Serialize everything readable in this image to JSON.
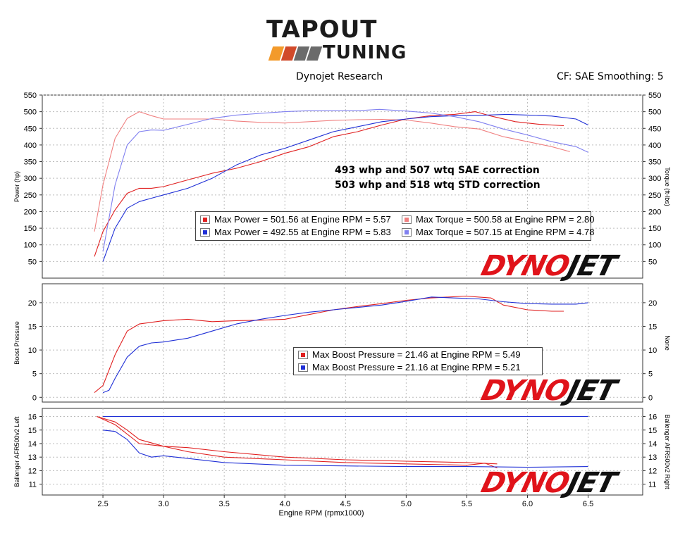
{
  "logo": {
    "top": "TAPOUT",
    "bottom": "TUNING"
  },
  "header": {
    "left": "Dynojet Research",
    "right": "CF: SAE Smoothing: 5"
  },
  "watermark": {
    "part1": "DYNO",
    "part2": "JET"
  },
  "notes": [
    "493 whp and 507 wtq SAE correction",
    "503 whp and 518 wtq STD correction"
  ],
  "legends": {
    "power": [
      "Max Power = 501.56 at Engine RPM = 5.57",
      "Max Torque = 500.58 at Engine RPM = 2.80",
      "Max Power = 492.55 at Engine RPM = 5.83",
      "Max Torque = 507.15 at Engine RPM = 4.78"
    ],
    "boost": [
      "Max Boost Pressure = 21.46 at Engine RPM = 5.49",
      "Max Boost Pressure = 21.16 at Engine RPM = 5.21"
    ]
  },
  "colors": {
    "run1": "#e02020",
    "run1_light": "#f08080",
    "run2": "#1f2fd6",
    "run2_light": "#8080f0",
    "logo_orange": "#f39a2b",
    "logo_red": "#d14a2a",
    "logo_gray": "#6b6b6b"
  },
  "chart_data": [
    {
      "type": "line",
      "panel": "power",
      "ylabel": "Power (hp)",
      "ylabel_right": "Torque (ft-lbs)",
      "xlim": [
        2.0,
        6.95
      ],
      "ylim": [
        0,
        550
      ],
      "yticks": [
        50,
        100,
        150,
        200,
        250,
        300,
        350,
        400,
        450,
        500,
        550
      ],
      "grid": true,
      "series": [
        {
          "role": "power",
          "run": 1,
          "x": [
            2.43,
            2.5,
            2.6,
            2.7,
            2.8,
            2.9,
            3.0,
            3.2,
            3.4,
            3.6,
            3.8,
            4.0,
            4.2,
            4.4,
            4.6,
            4.8,
            5.0,
            5.2,
            5.4,
            5.57,
            5.7,
            5.9,
            6.1,
            6.3
          ],
          "y": [
            65,
            140,
            205,
            255,
            270,
            270,
            275,
            295,
            315,
            330,
            350,
            375,
            395,
            425,
            440,
            460,
            478,
            488,
            492,
            500,
            487,
            470,
            462,
            458
          ]
        },
        {
          "role": "torque",
          "run": 1,
          "x": [
            2.43,
            2.5,
            2.6,
            2.7,
            2.8,
            2.9,
            3.0,
            3.2,
            3.4,
            3.6,
            3.8,
            4.0,
            4.2,
            4.4,
            4.6,
            4.8,
            5.0,
            5.2,
            5.4,
            5.6,
            5.8,
            6.0,
            6.2,
            6.35
          ],
          "y": [
            140,
            280,
            420,
            480,
            500,
            488,
            478,
            478,
            478,
            472,
            468,
            466,
            470,
            474,
            476,
            477,
            475,
            466,
            455,
            448,
            425,
            410,
            395,
            380
          ]
        },
        {
          "role": "power",
          "run": 2,
          "x": [
            2.5,
            2.6,
            2.7,
            2.8,
            2.9,
            3.0,
            3.2,
            3.4,
            3.6,
            3.8,
            4.0,
            4.2,
            4.4,
            4.6,
            4.8,
            5.0,
            5.2,
            5.4,
            5.6,
            5.83,
            6.0,
            6.2,
            6.4,
            6.5
          ],
          "y": [
            50,
            150,
            210,
            230,
            240,
            250,
            270,
            300,
            340,
            370,
            390,
            415,
            440,
            455,
            470,
            478,
            485,
            488,
            489,
            492,
            490,
            487,
            478,
            460
          ]
        },
        {
          "role": "torque",
          "run": 2,
          "x": [
            2.5,
            2.6,
            2.7,
            2.8,
            2.9,
            3.0,
            3.2,
            3.4,
            3.6,
            3.8,
            4.0,
            4.2,
            4.4,
            4.6,
            4.78,
            5.0,
            5.2,
            5.4,
            5.6,
            5.8,
            6.0,
            6.2,
            6.4,
            6.5
          ],
          "y": [
            80,
            280,
            400,
            440,
            445,
            444,
            462,
            480,
            490,
            495,
            500,
            503,
            503,
            503,
            507,
            502,
            496,
            485,
            470,
            448,
            430,
            410,
            395,
            378
          ]
        }
      ]
    },
    {
      "type": "line",
      "panel": "boost",
      "ylabel": "Boost Pressure",
      "ylabel_right": "None",
      "xlim": [
        2.0,
        6.95
      ],
      "ylim": [
        -1,
        24
      ],
      "yticks": [
        0,
        5,
        10,
        15,
        20
      ],
      "grid": true,
      "series": [
        {
          "run": 1,
          "x": [
            2.43,
            2.5,
            2.6,
            2.7,
            2.8,
            3.0,
            3.2,
            3.4,
            3.6,
            3.8,
            4.0,
            4.2,
            4.4,
            4.6,
            4.8,
            5.0,
            5.2,
            5.49,
            5.7,
            5.8,
            6.0,
            6.2,
            6.3
          ],
          "y": [
            1.0,
            2.5,
            9.0,
            14.0,
            15.5,
            16.2,
            16.5,
            16.0,
            16.2,
            16.3,
            16.5,
            17.5,
            18.5,
            19.2,
            19.8,
            20.5,
            21.0,
            21.4,
            21.0,
            19.5,
            18.5,
            18.2,
            18.2
          ]
        },
        {
          "run": 2,
          "x": [
            2.5,
            2.55,
            2.6,
            2.7,
            2.8,
            2.9,
            3.0,
            3.2,
            3.4,
            3.6,
            3.8,
            4.0,
            4.2,
            4.4,
            4.6,
            4.8,
            5.0,
            5.21,
            5.4,
            5.6,
            5.8,
            6.0,
            6.2,
            6.4,
            6.5
          ],
          "y": [
            1.0,
            1.5,
            4.0,
            8.5,
            10.8,
            11.5,
            11.7,
            12.5,
            14.0,
            15.5,
            16.5,
            17.3,
            18.0,
            18.5,
            19.0,
            19.5,
            20.3,
            21.2,
            21.0,
            20.8,
            20.2,
            19.8,
            19.7,
            19.7,
            20.0
          ]
        }
      ]
    },
    {
      "type": "line",
      "panel": "afr",
      "ylabel": "Ballenger AFR500v2 Left",
      "ylabel_right": "Ballenger AFR500v2 Right",
      "xlabel": "Engine RPM (rpmx1000)",
      "xlim": [
        2.0,
        6.95
      ],
      "ylim": [
        10.2,
        16.6
      ],
      "yticks": [
        11,
        12,
        13,
        14,
        15,
        16
      ],
      "xticks": [
        2.5,
        3.0,
        3.5,
        4.0,
        4.5,
        5.0,
        5.5,
        6.0,
        6.5
      ],
      "grid": true,
      "series": [
        {
          "run": 1,
          "side": "left",
          "x": [
            2.45,
            2.6,
            2.7,
            2.8,
            3.0,
            3.2,
            3.5,
            4.0,
            4.5,
            5.0,
            5.5,
            5.65,
            5.75
          ],
          "y": [
            16.0,
            15.6,
            15.0,
            14.3,
            13.8,
            13.4,
            13.0,
            12.8,
            12.6,
            12.5,
            12.4,
            12.55,
            12.2
          ]
        },
        {
          "run": 1,
          "side": "right",
          "x": [
            2.45,
            2.6,
            2.8,
            3.0,
            3.2,
            3.5,
            4.0,
            4.5,
            5.0,
            5.5,
            5.75
          ],
          "y": [
            16.0,
            15.4,
            14.0,
            13.8,
            13.7,
            13.4,
            13.0,
            12.8,
            12.7,
            12.6,
            12.5
          ]
        },
        {
          "run": 2,
          "side": "left",
          "x": [
            2.5,
            6.5
          ],
          "y": [
            16.0,
            16.0
          ]
        },
        {
          "run": 2,
          "side": "right",
          "x": [
            2.5,
            2.6,
            2.7,
            2.8,
            2.9,
            3.0,
            3.2,
            3.5,
            4.0,
            4.5,
            5.0,
            5.5,
            6.0,
            6.5
          ],
          "y": [
            15.0,
            14.9,
            14.3,
            13.3,
            13.0,
            13.1,
            12.9,
            12.6,
            12.4,
            12.35,
            12.3,
            12.3,
            12.25,
            12.3
          ]
        }
      ]
    }
  ]
}
